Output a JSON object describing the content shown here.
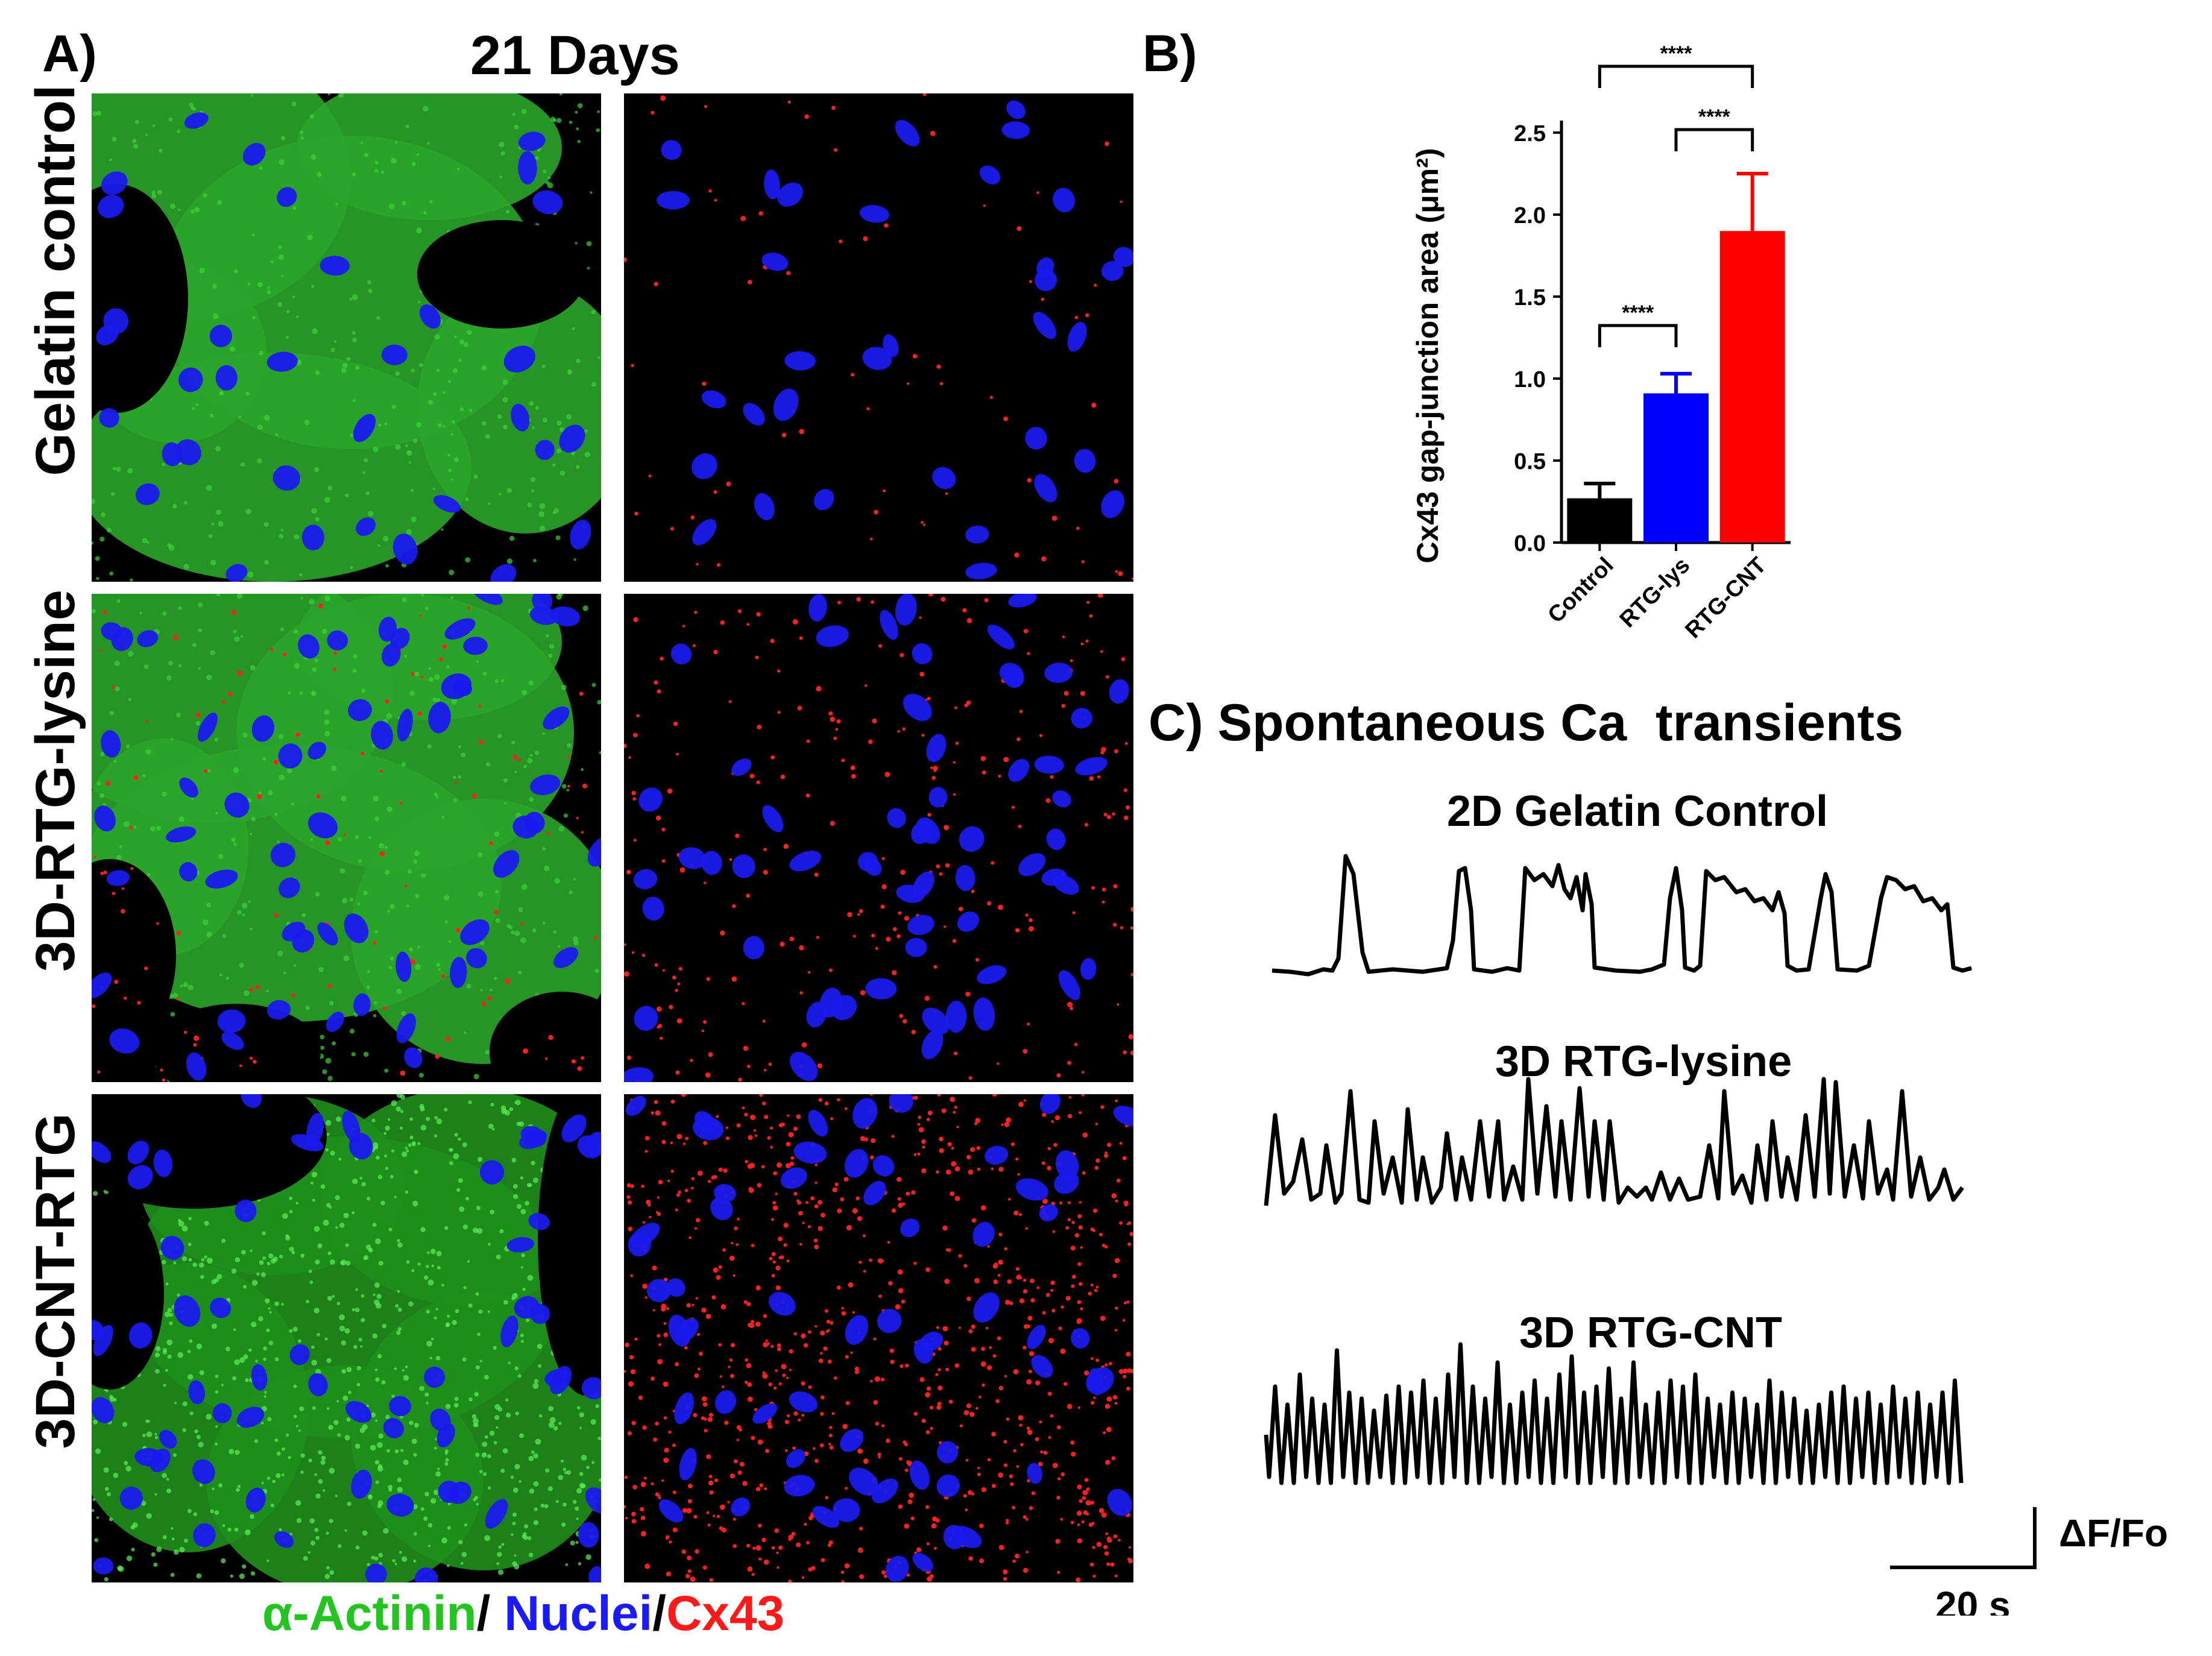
{
  "panel_a": {
    "letter": "A)",
    "title": "21 Days",
    "rows": [
      {
        "label": "Gelatin control"
      },
      {
        "label": "3D-RTG-lysine"
      },
      {
        "label": "3D-CNT-RTG"
      }
    ],
    "legend": {
      "actinin": "α-Actinin",
      "sep1": "/ ",
      "nuclei": "Nuclei",
      "sep2": "/",
      "cx43": "Cx43"
    },
    "colors": {
      "actinin": "#22c41e",
      "nuclei": "#1a1aff",
      "cx43": "#ff1a1a"
    }
  },
  "panel_b": {
    "letter": "B)"
  },
  "panel_c": {
    "letter": "C)",
    "title_prefix": "Spontaneous Ca",
    "title_suffix": "transients",
    "traces": [
      {
        "title": "2D Gelatin Control"
      },
      {
        "title": "3D RTG-lysine"
      },
      {
        "title": "3D RTG-CNT"
      }
    ],
    "scale_y_label": "ΔF/Fo",
    "scale_x_label": "20 s"
  },
  "chart_data": {
    "type": "bar",
    "categories": [
      "Control",
      "RTG-lys",
      "RTG-CNT"
    ],
    "values": [
      0.27,
      0.91,
      1.9
    ],
    "errors": [
      0.09,
      0.12,
      0.35
    ],
    "colors": [
      "#000000",
      "#0000ff",
      "#ff0000"
    ],
    "ylabel": "Cx43 gap-junction area (μm²)",
    "ylim": [
      0,
      2.5
    ],
    "yticks": [
      "0.0",
      "0.5",
      "1.0",
      "1.5",
      "2.0",
      "2.5"
    ],
    "significance": [
      {
        "from": 0,
        "to": 1,
        "label": "****"
      },
      {
        "from": 1,
        "to": 2,
        "label": "****"
      },
      {
        "from": 0,
        "to": 2,
        "label": "****"
      }
    ]
  }
}
